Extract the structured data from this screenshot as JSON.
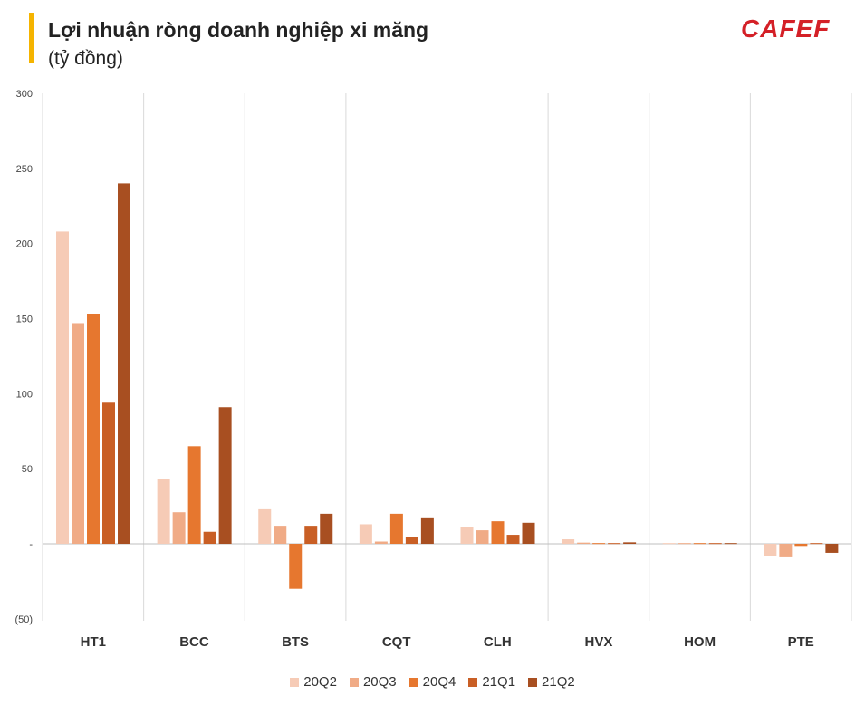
{
  "header": {
    "title": "Lợi nhuận ròng doanh nghiệp xi măng",
    "subtitle": "(tỷ đồng)",
    "logo_text": "CAFEF"
  },
  "colors": {
    "accent_bar": "#f5b400",
    "logo": "#d42027",
    "series": [
      "#f6cbb6",
      "#f0ab86",
      "#e6772f",
      "#c95f25",
      "#a84f21"
    ]
  },
  "chart_data": {
    "type": "bar",
    "title": "Lợi nhuận ròng doanh nghiệp xi măng",
    "subtitle": "(tỷ đồng)",
    "categories": [
      "HT1",
      "BCC",
      "BTS",
      "CQT",
      "CLH",
      "HVX",
      "HOM",
      "PTE"
    ],
    "series": [
      {
        "name": "20Q2",
        "values": [
          208,
          43,
          23,
          13,
          11,
          3,
          0.5,
          -8
        ]
      },
      {
        "name": "20Q3",
        "values": [
          147,
          21,
          12,
          1.5,
          9,
          0.8,
          0.5,
          -9
        ]
      },
      {
        "name": "20Q4",
        "values": [
          153,
          65,
          -30,
          20,
          15,
          0.5,
          0.5,
          -2
        ]
      },
      {
        "name": "21Q1",
        "values": [
          94,
          8,
          12,
          4.5,
          6,
          0.5,
          0.5,
          0.5
        ]
      },
      {
        "name": "21Q2",
        "values": [
          240,
          91,
          20,
          17,
          14,
          1,
          0.5,
          -6
        ]
      }
    ],
    "ylim": [
      -50,
      300
    ],
    "yticks": [
      -50,
      0,
      50,
      100,
      150,
      200,
      250,
      300
    ],
    "ytick_labels": [
      "(50)",
      "-",
      "50",
      "100",
      "150",
      "200",
      "250",
      "300"
    ],
    "grid": "vertical separators between categories",
    "legend": "bottom-center"
  }
}
